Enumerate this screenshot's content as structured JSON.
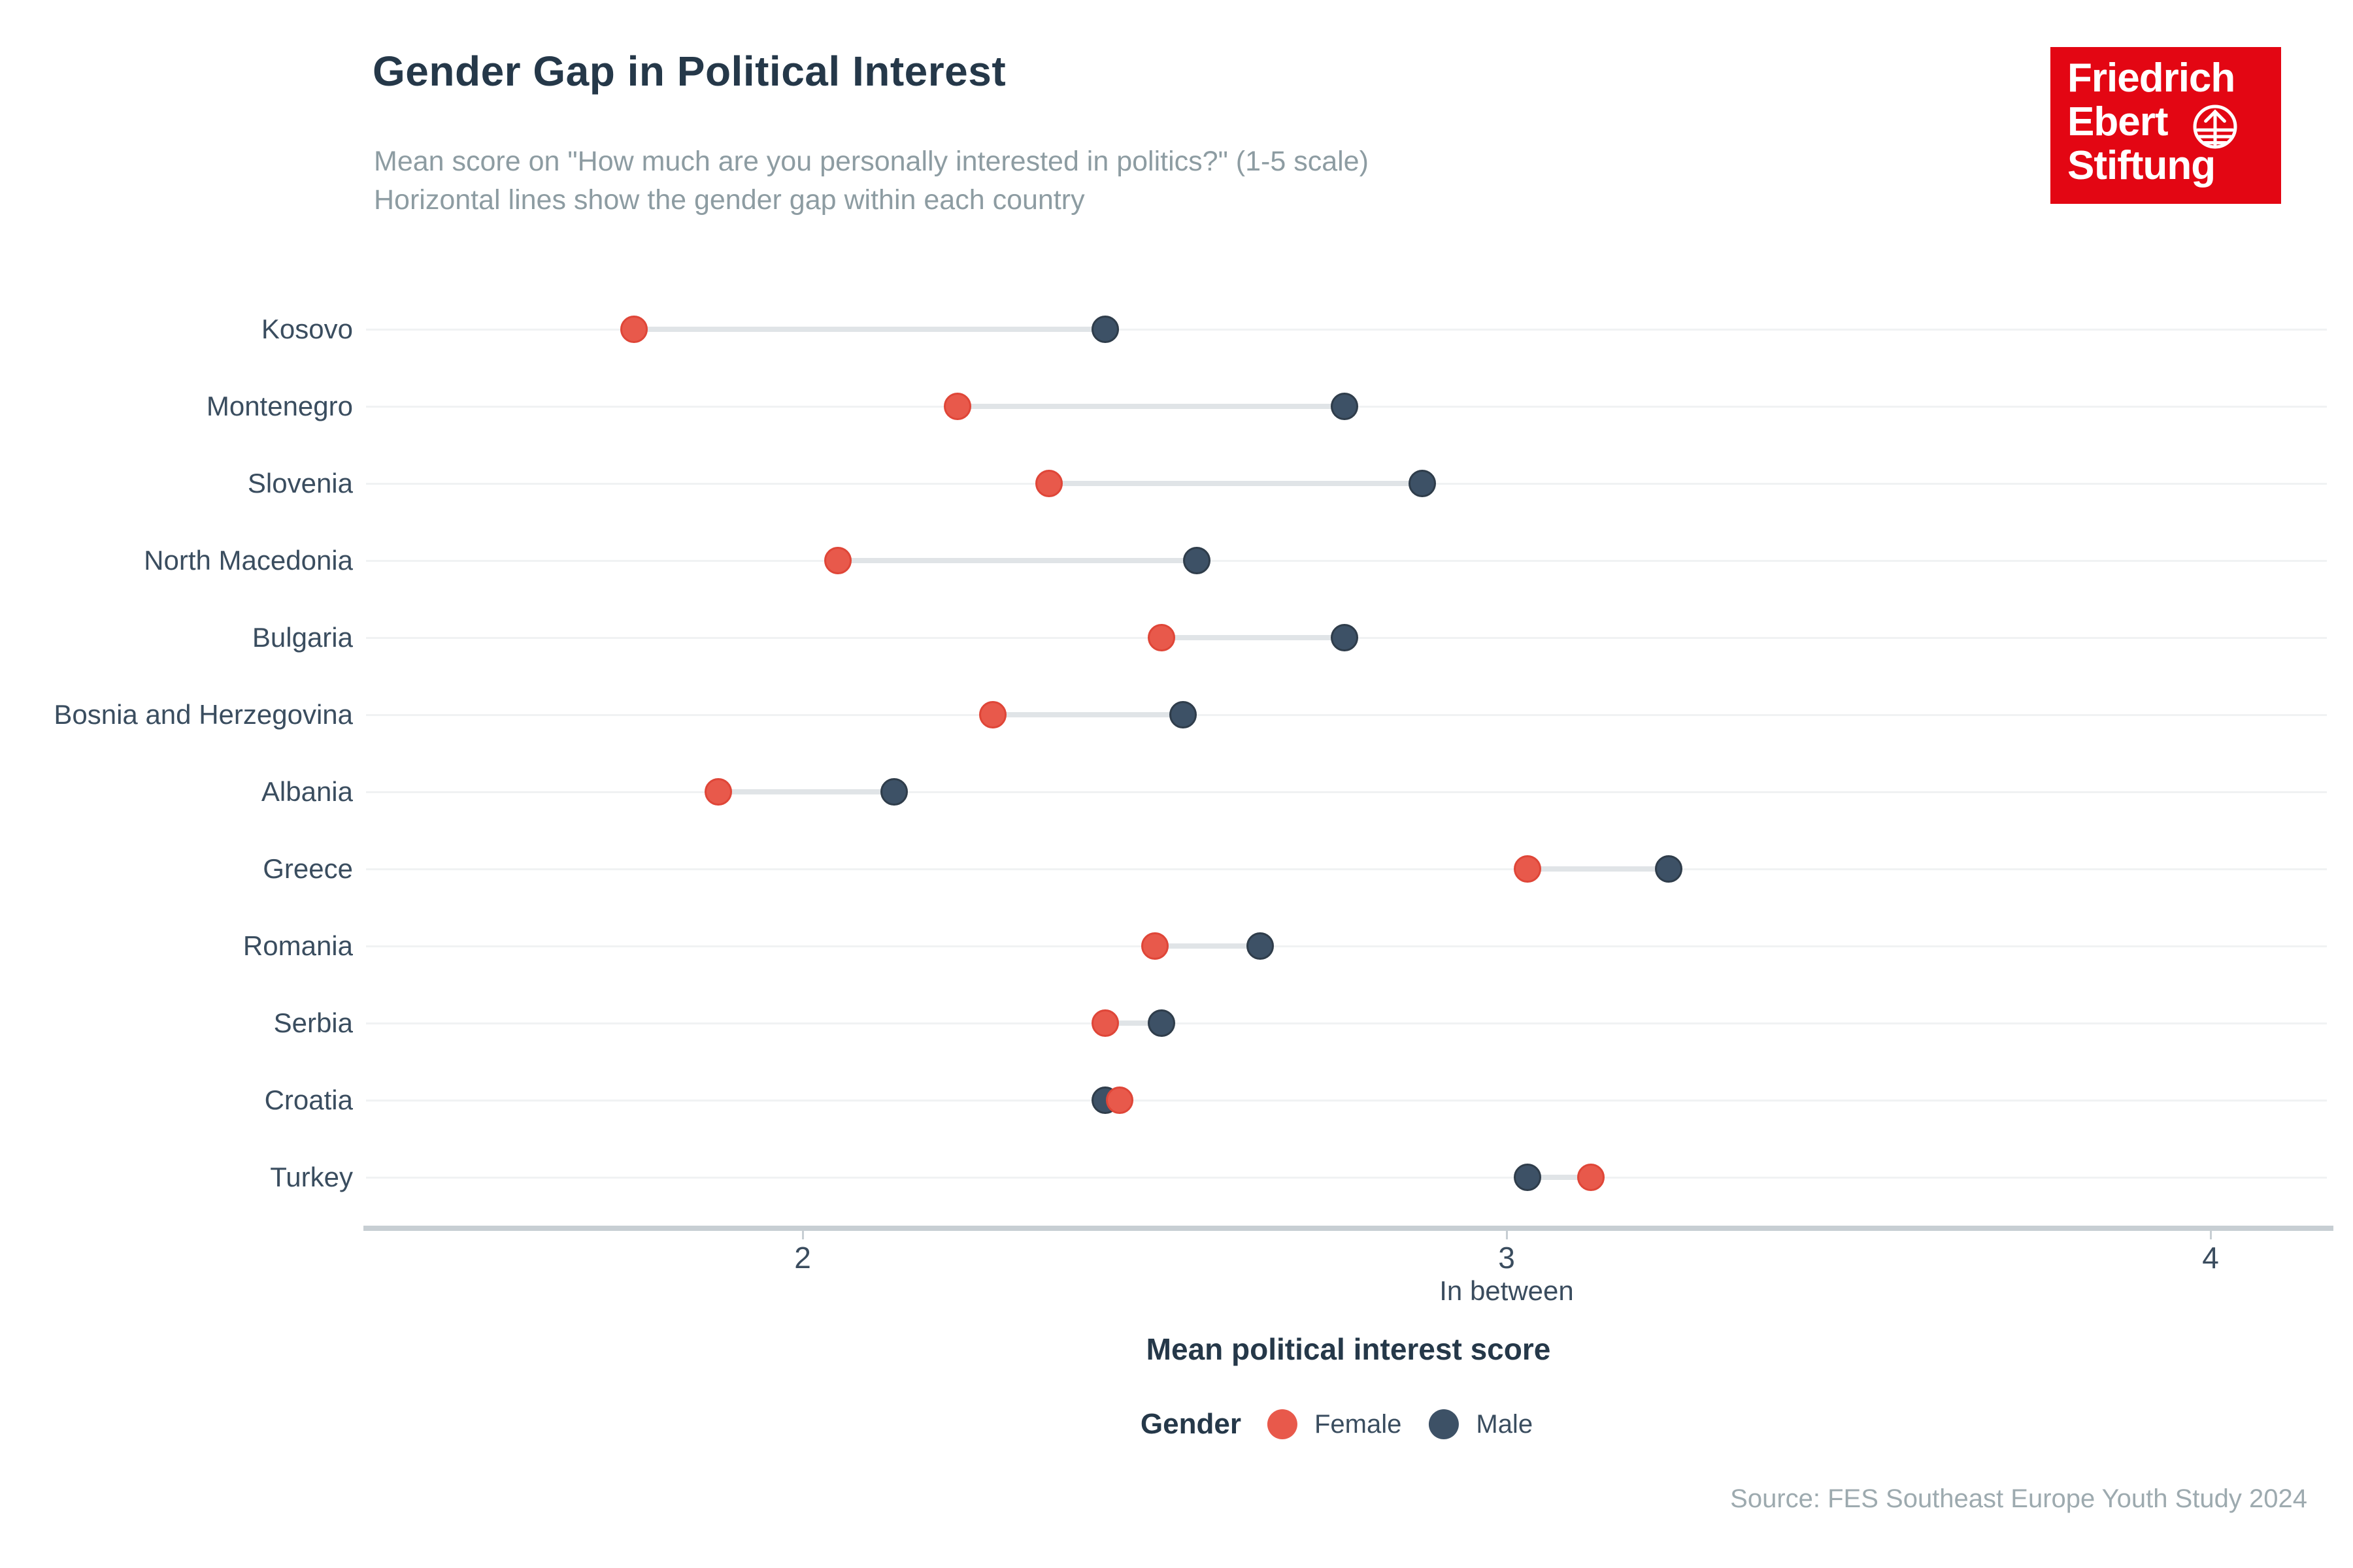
{
  "header": {
    "title": "Gender Gap in Political Interest",
    "subtitle_line1": "Mean score on \"How much are you personally interested in politics?\" (1-5 scale)",
    "subtitle_line2": "Horizontal lines show the gender gap within each country"
  },
  "logo": {
    "name": "Friedrich Ebert Stiftung",
    "line1": "Friedrich",
    "line2": "Ebert",
    "line3": "Stiftung",
    "background_color": "#E30613",
    "text_color": "#FFFFFF",
    "icon": "globe-arrow-icon"
  },
  "legend": {
    "title": "Gender",
    "items": [
      {
        "label": "Female",
        "color": "#E8594B"
      },
      {
        "label": "Male",
        "color": "#3D5166"
      }
    ]
  },
  "x_axis": {
    "title": "Mean political interest score",
    "ticks": [
      2,
      3,
      4
    ],
    "tick_sublabel": {
      "tick": 3,
      "label": "In between"
    }
  },
  "source": "Source: FES Southeast Europe Youth Study 2024",
  "colors": {
    "female": "#E8594B",
    "female_border": "#DF4638",
    "male": "#3D5166",
    "male_border": "#2F3D4B",
    "axis": "#C7CED3",
    "row_line": "#F0F2F3",
    "connector": "#E0E4E7",
    "title_text": "#253849",
    "subtitle_text": "#8D9CA2",
    "fes_red": "#E30613"
  },
  "chart_data": {
    "type": "scatter",
    "variant": "dumbbell",
    "title": "Gender Gap in Political Interest",
    "xlabel": "Mean political interest score",
    "ylabel": "",
    "xlim": [
      1.38,
      4.17
    ],
    "x_ticks": [
      2,
      3,
      4
    ],
    "grid": "horizontal row lines only",
    "legend_position": "bottom center",
    "categories": [
      "Kosovo",
      "Montenegro",
      "Slovenia",
      "North Macedonia",
      "Bulgaria",
      "Bosnia and Herzegovina",
      "Albania",
      "Greece",
      "Romania",
      "Serbia",
      "Croatia",
      "Turkey"
    ],
    "series": [
      {
        "name": "Female",
        "color": "#E8594B",
        "values": [
          1.76,
          2.22,
          2.35,
          2.05,
          2.51,
          2.27,
          1.88,
          3.03,
          2.5,
          2.43,
          2.45,
          3.12
        ]
      },
      {
        "name": "Male",
        "color": "#3D5166",
        "values": [
          2.43,
          2.77,
          2.88,
          2.56,
          2.77,
          2.54,
          2.13,
          3.23,
          2.65,
          2.51,
          2.43,
          3.03
        ]
      }
    ]
  }
}
